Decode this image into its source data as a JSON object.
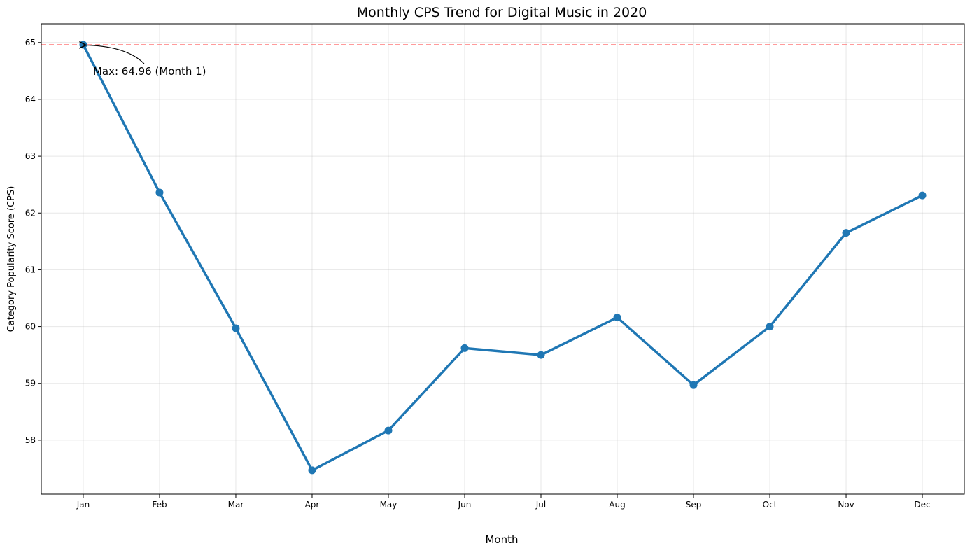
{
  "chart_data": {
    "type": "line",
    "title": "Monthly CPS Trend for Digital Music in 2020",
    "xlabel": "Month",
    "ylabel": "Category Popularity Score (CPS)",
    "categories": [
      "Jan",
      "Feb",
      "Mar",
      "Apr",
      "May",
      "Jun",
      "Jul",
      "Aug",
      "Sep",
      "Oct",
      "Nov",
      "Dec"
    ],
    "values": [
      64.96,
      62.36,
      59.97,
      57.47,
      58.17,
      59.62,
      59.5,
      60.16,
      58.97,
      60.0,
      61.65,
      62.31
    ],
    "ylim": [
      57.05,
      65.33
    ],
    "yticks": [
      58,
      59,
      60,
      61,
      62,
      63,
      64,
      65
    ],
    "grid": true,
    "line_color": "#1f77b4",
    "reference_line": {
      "value": 64.96,
      "color": "#ff6b6b",
      "style": "dashed"
    },
    "annotation": {
      "text": "Max: 64.96 (Month 1)",
      "category_index": 0
    }
  }
}
